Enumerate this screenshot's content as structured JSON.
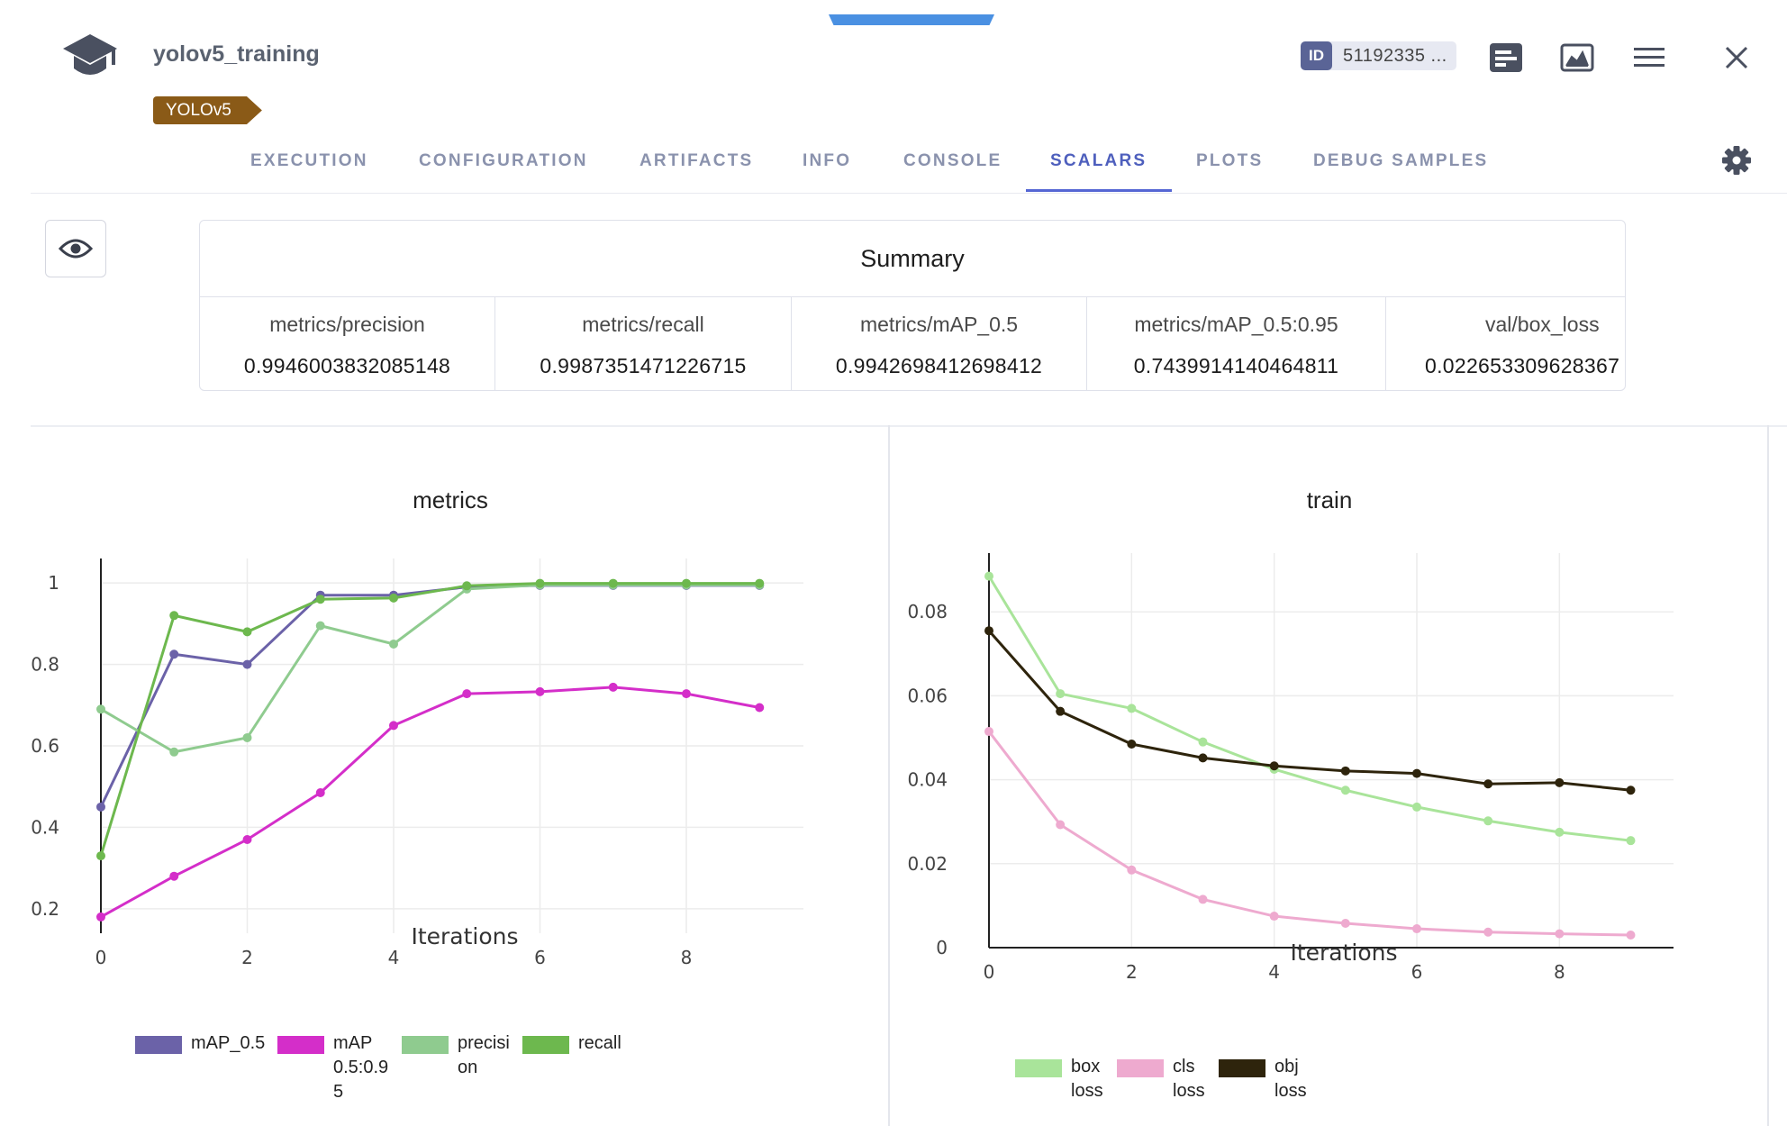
{
  "header": {
    "title": "yolov5_training",
    "tag": "YOLOv5",
    "id_label": "ID",
    "id_value": "51192335 ..."
  },
  "tabs": [
    {
      "label": "EXECUTION"
    },
    {
      "label": "CONFIGURATION"
    },
    {
      "label": "ARTIFACTS"
    },
    {
      "label": "INFO"
    },
    {
      "label": "CONSOLE"
    },
    {
      "label": "SCALARS",
      "active": true
    },
    {
      "label": "PLOTS"
    },
    {
      "label": "DEBUG SAMPLES"
    }
  ],
  "summary": {
    "title": "Summary",
    "columns": [
      {
        "name": "metrics/precision",
        "value": "0.9946003832085148"
      },
      {
        "name": "metrics/recall",
        "value": "0.9987351471226715"
      },
      {
        "name": "metrics/mAP_0.5",
        "value": "0.9942698412698412"
      },
      {
        "name": "metrics/mAP_0.5:0.95",
        "value": "0.7439914140464811"
      },
      {
        "name": "val/box_loss",
        "value": "0.022653309628367"
      }
    ]
  },
  "chart_data": [
    {
      "type": "line",
      "title": "metrics",
      "xlabel": "Iterations",
      "ylabel": "",
      "x": [
        0,
        1,
        2,
        3,
        4,
        5,
        6,
        7,
        8,
        9
      ],
      "xlim": [
        0,
        9.6
      ],
      "ylim": [
        0.14,
        1.06
      ],
      "xticks": [
        "0",
        "2",
        "4",
        "6",
        "8"
      ],
      "yticks": [
        "0.2",
        "0.4",
        "0.6",
        "0.8",
        "1"
      ],
      "grid": true,
      "legend": "bottom",
      "series": [
        {
          "name": "mAP_0.5",
          "color": "#6b62a8",
          "values": [
            0.45,
            0.825,
            0.8,
            0.97,
            0.97,
            0.99,
            0.994,
            0.994,
            0.994,
            0.994
          ]
        },
        {
          "name": "mAP 0.5:0.95",
          "color": "#d42ec9",
          "values": [
            0.18,
            0.28,
            0.37,
            0.485,
            0.65,
            0.728,
            0.733,
            0.744,
            0.728,
            0.694
          ]
        },
        {
          "name": "precision",
          "color": "#8fcb8f",
          "values": [
            0.69,
            0.585,
            0.62,
            0.895,
            0.85,
            0.985,
            0.995,
            0.995,
            0.995,
            0.995
          ]
        },
        {
          "name": "recall",
          "color": "#6db84e",
          "values": [
            0.33,
            0.92,
            0.88,
            0.96,
            0.963,
            0.993,
            0.999,
            0.999,
            0.999,
            0.999
          ]
        }
      ]
    },
    {
      "type": "line",
      "title": "train",
      "xlabel": "Iterations",
      "ylabel": "",
      "x": [
        0,
        1,
        2,
        3,
        4,
        5,
        6,
        7,
        8,
        9
      ],
      "xlim": [
        0,
        9.6
      ],
      "ylim": [
        0,
        0.094
      ],
      "xticks": [
        "0",
        "2",
        "4",
        "6",
        "8"
      ],
      "yticks": [
        "0",
        "0.02",
        "0.04",
        "0.06",
        "0.08"
      ],
      "grid": true,
      "legend": "bottom",
      "series": [
        {
          "name": "box loss",
          "color": "#a9e49a",
          "values": [
            0.0885,
            0.0605,
            0.057,
            0.049,
            0.0425,
            0.0375,
            0.0335,
            0.0302,
            0.0275,
            0.0255
          ]
        },
        {
          "name": "cls loss",
          "color": "#eeaacf",
          "values": [
            0.0515,
            0.0293,
            0.0185,
            0.0115,
            0.0075,
            0.0058,
            0.0045,
            0.0037,
            0.0033,
            0.003
          ]
        },
        {
          "name": "obj loss",
          "color": "#2e240c",
          "values": [
            0.0755,
            0.0563,
            0.0485,
            0.0452,
            0.0433,
            0.0421,
            0.0415,
            0.039,
            0.0393,
            0.0375
          ]
        }
      ]
    }
  ],
  "legends": {
    "metrics": [
      {
        "text": "mAP_0.5",
        "color": "#6b62a8"
      },
      {
        "text": "mAP\n0.5:0.9\n5",
        "color": "#d42ec9"
      },
      {
        "text": "precisi\non",
        "color": "#8fcb8f"
      },
      {
        "text": "recall",
        "color": "#6db84e"
      }
    ],
    "train": [
      {
        "text": "box\nloss",
        "color": "#a9e49a"
      },
      {
        "text": "cls\nloss",
        "color": "#eeaacf"
      },
      {
        "text": "obj\nloss",
        "color": "#2e240c"
      }
    ]
  },
  "icons": {
    "app": "graduation-cap-icon",
    "details": "details-panel-icon",
    "image": "image-chart-icon",
    "menu": "hamburger-menu-icon",
    "close": "close-icon",
    "settings": "gear-icon",
    "visibility": "eye-icon"
  }
}
